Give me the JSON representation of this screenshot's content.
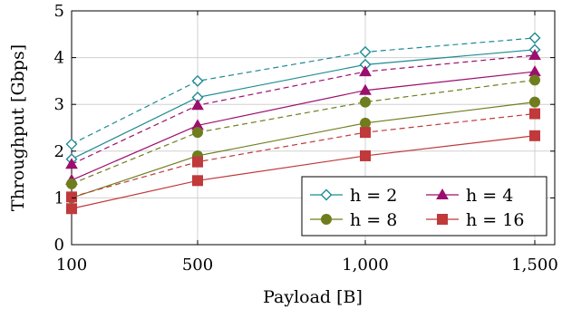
{
  "chart_data": {
    "type": "line",
    "xlabel": "Payload [B]",
    "ylabel": "Throughput [Gbps]",
    "x_categories": [
      "100",
      "500",
      "1,000",
      "1,500"
    ],
    "ylim": [
      0,
      5
    ],
    "y_ticks": [
      "0",
      "1",
      "2",
      "3",
      "4",
      "5"
    ],
    "grid": true,
    "legend_position": "bottom-right",
    "series": [
      {
        "name": "h = 2",
        "marker": "diamond",
        "color": "#1f8a94",
        "solid": [
          1.83,
          3.15,
          3.85,
          4.17
        ],
        "dashed": [
          2.15,
          3.5,
          4.12,
          4.42
        ]
      },
      {
        "name": "h = 4",
        "marker": "triangle",
        "color": "#9c0f6e",
        "solid": [
          1.38,
          2.55,
          3.3,
          3.7
        ],
        "dashed": [
          1.72,
          2.98,
          3.7,
          4.05
        ]
      },
      {
        "name": "h = 8",
        "marker": "circle",
        "color": "#6f7d1e",
        "solid": [
          1.0,
          1.9,
          2.6,
          3.05
        ],
        "dashed": [
          1.3,
          2.4,
          3.05,
          3.52
        ]
      },
      {
        "name": "h = 16",
        "marker": "square",
        "color": "#c0393b",
        "solid": [
          0.77,
          1.37,
          1.9,
          2.33
        ],
        "dashed": [
          1.02,
          1.77,
          2.4,
          2.8
        ]
      }
    ]
  }
}
